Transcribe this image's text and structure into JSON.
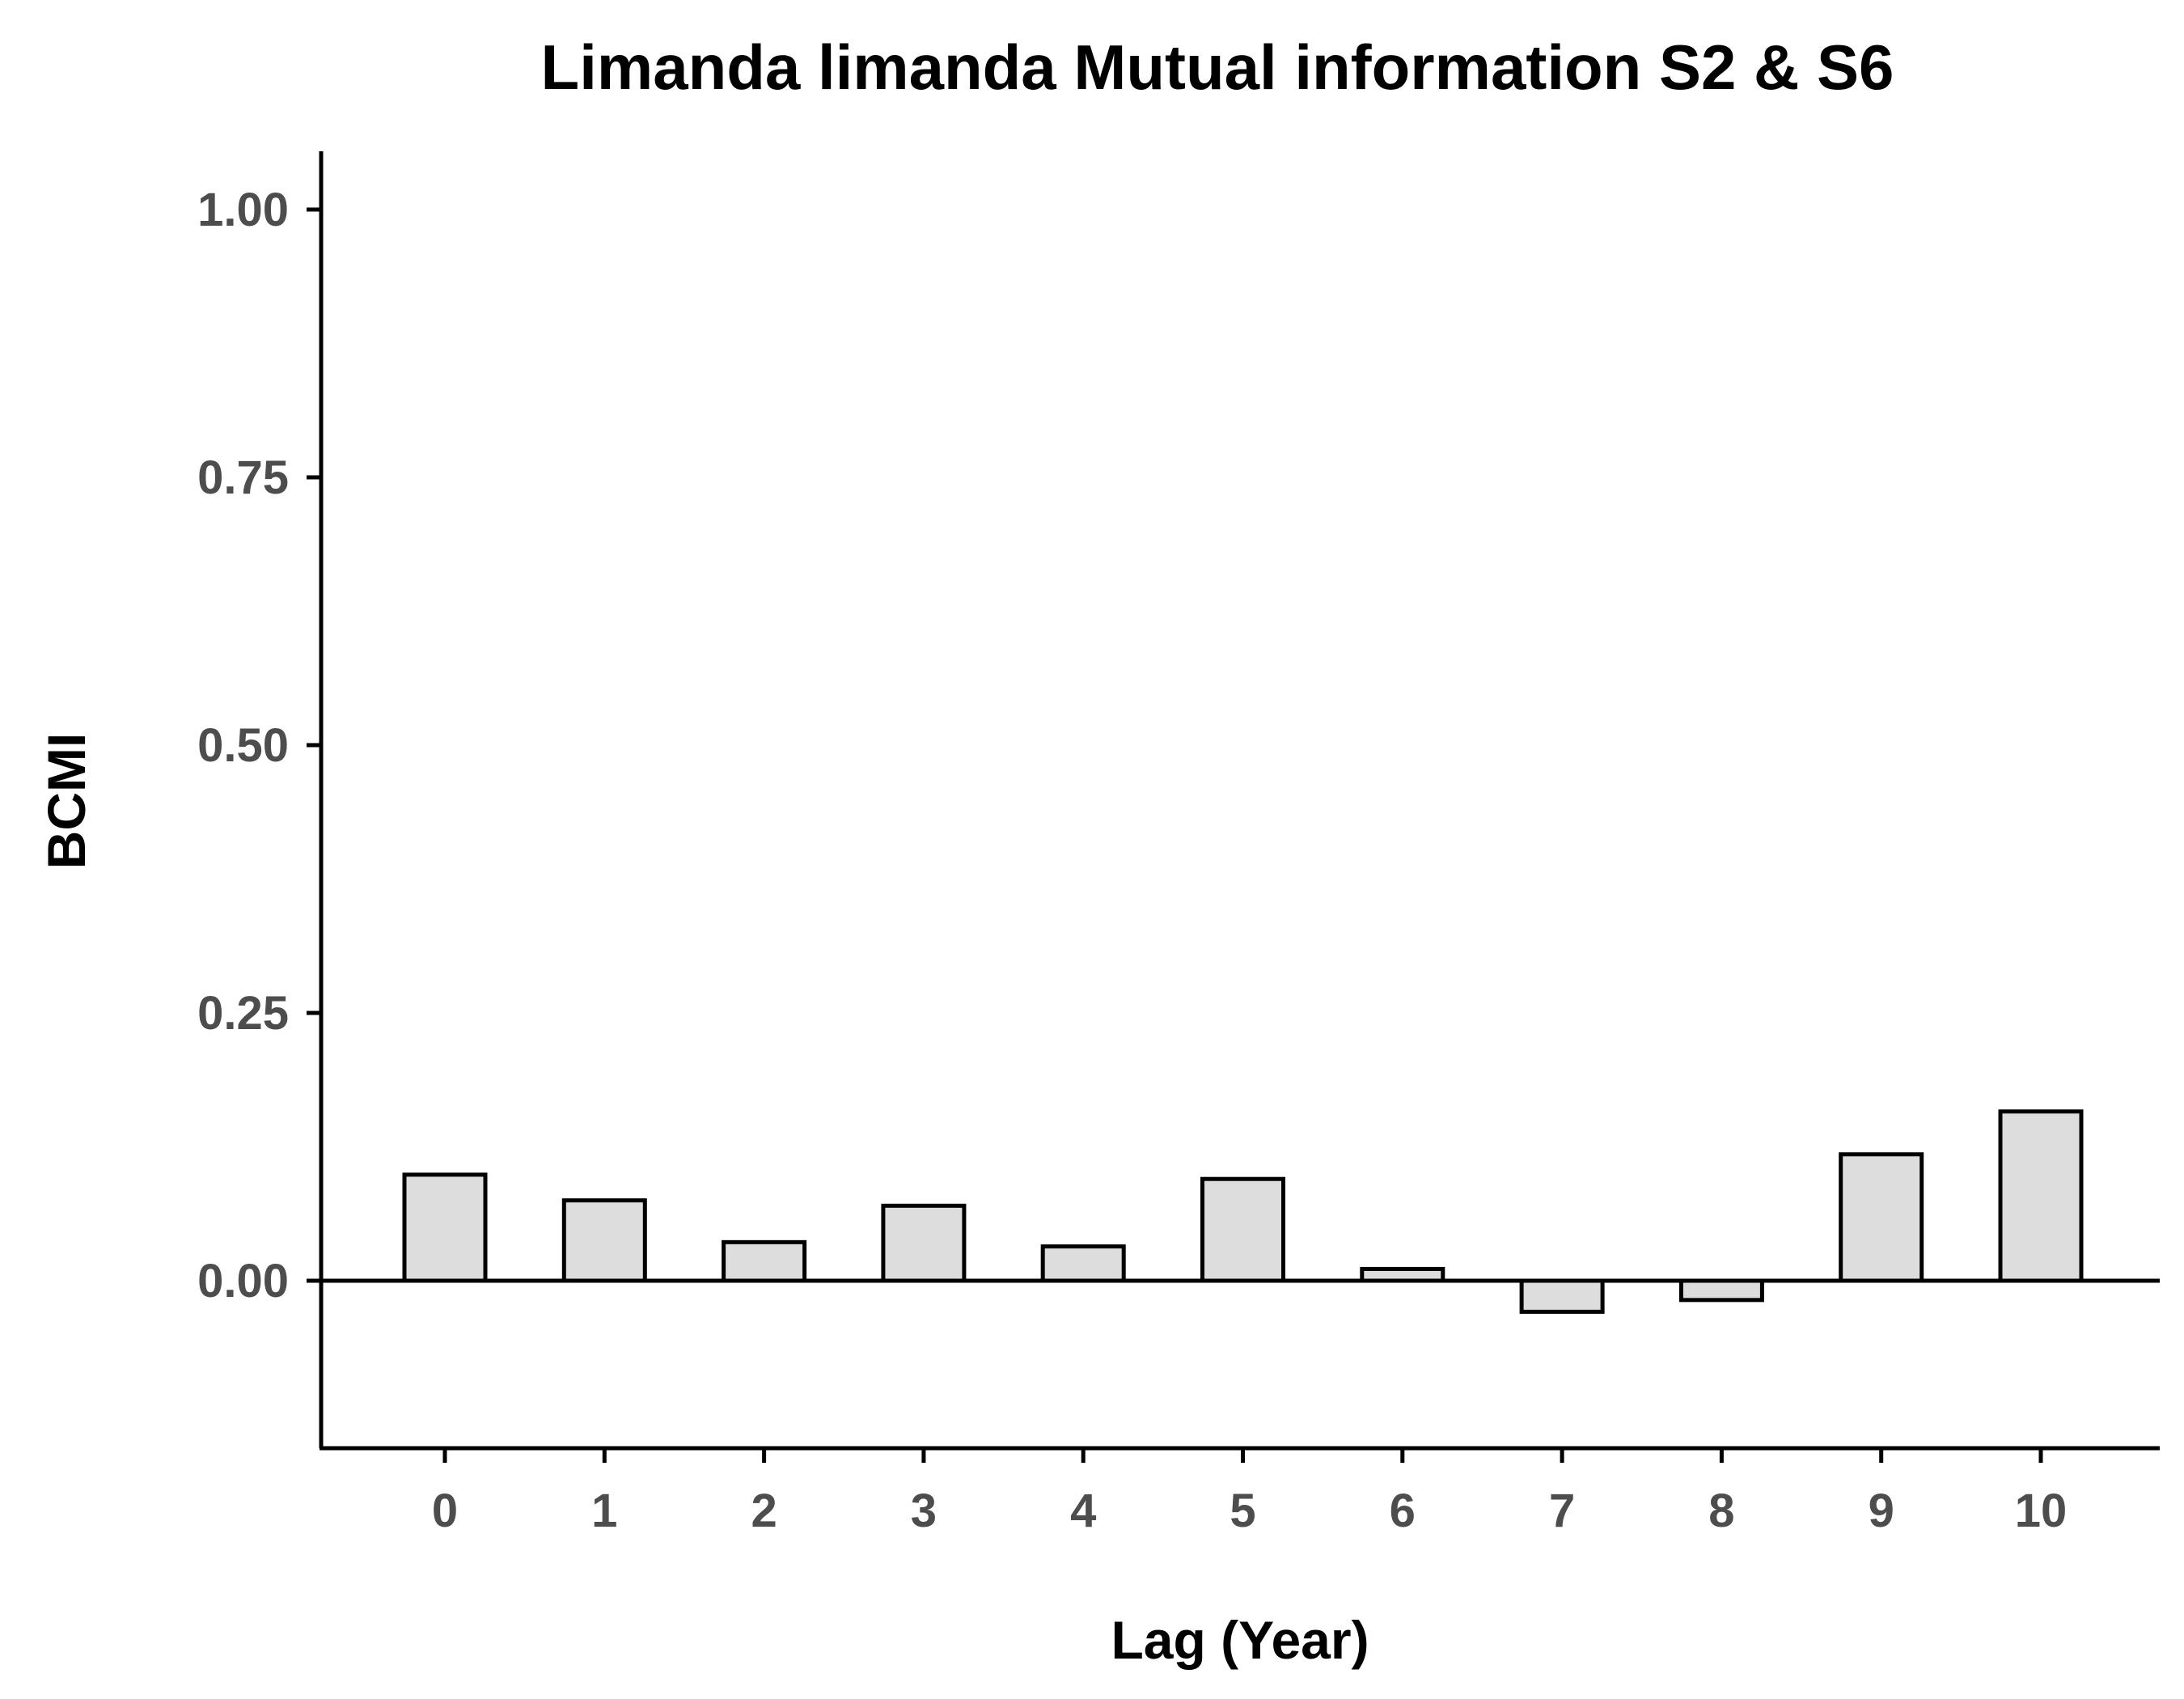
{
  "chart_data": {
    "type": "bar",
    "title": "Limanda limanda Mutual information S2 & S6",
    "xlabel": "Lag (Year)",
    "ylabel": "BCMI",
    "categories": [
      "0",
      "1",
      "2",
      "3",
      "4",
      "5",
      "6",
      "7",
      "8",
      "9",
      "10"
    ],
    "values": [
      0.099,
      0.075,
      0.036,
      0.07,
      0.032,
      0.095,
      0.011,
      -0.029,
      -0.018,
      0.118,
      0.158
    ],
    "ylim": [
      -0.155,
      1.055
    ],
    "yticks": [
      0.0,
      0.25,
      0.5,
      0.75,
      1.0
    ],
    "ytick_labels": [
      "0.00",
      "0.25",
      "0.50",
      "0.75",
      "1.00"
    ],
    "reference_line": 0,
    "grid": false,
    "legend": "none",
    "colors": {
      "bar_fill": "#dddddd",
      "bar_stroke": "#000000",
      "axis": "#000000",
      "tick_text": "#4d4d4d"
    }
  }
}
